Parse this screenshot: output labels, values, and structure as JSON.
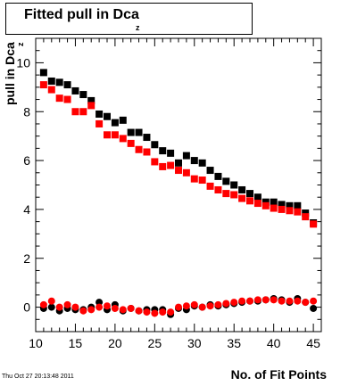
{
  "title": "Fitted pull in Dca",
  "title_subscript": "z",
  "ylabel": "pull in Dca",
  "ylabel_subscript": "z",
  "xlabel": "No. of Fit Points",
  "timestamp": "Thu Oct 27 20:13:48 2011",
  "colors": {
    "black_series": "#000000",
    "red_series": "#ff0000",
    "axis": "#000000"
  },
  "chart_data": {
    "type": "scatter",
    "title": "Fitted pull in Dca",
    "xlabel": "No. of Fit Points",
    "ylabel": "pull in Dca",
    "xlim": [
      10,
      46
    ],
    "ylim": [
      -1,
      11
    ],
    "x_ticks": [
      10,
      15,
      20,
      25,
      30,
      35,
      40,
      45
    ],
    "y_ticks": [
      0,
      2,
      4,
      6,
      8,
      10
    ],
    "grid": false,
    "legend": "none",
    "x": [
      11,
      12,
      13,
      14,
      15,
      16,
      17,
      18,
      19,
      20,
      21,
      22,
      23,
      24,
      25,
      26,
      27,
      28,
      29,
      30,
      31,
      32,
      33,
      34,
      35,
      36,
      37,
      38,
      39,
      40,
      41,
      42,
      43,
      44,
      45
    ],
    "series": [
      {
        "marker": "square",
        "color": "#000000",
        "values": [
          9.6,
          9.25,
          9.2,
          9.1,
          8.85,
          8.7,
          8.45,
          7.9,
          7.8,
          7.55,
          7.65,
          7.15,
          7.15,
          6.95,
          6.65,
          6.4,
          6.3,
          5.9,
          6.2,
          6.0,
          5.9,
          5.6,
          5.35,
          5.15,
          5.0,
          4.8,
          4.65,
          4.5,
          4.3,
          4.3,
          4.2,
          4.15,
          4.15,
          3.85,
          3.45
        ]
      },
      {
        "marker": "square",
        "color": "#ff0000",
        "values": [
          9.1,
          8.9,
          8.55,
          8.5,
          8.0,
          8.0,
          8.25,
          7.5,
          7.05,
          7.05,
          6.9,
          6.7,
          6.45,
          6.35,
          5.95,
          5.75,
          5.8,
          5.6,
          5.5,
          5.25,
          5.2,
          4.95,
          4.8,
          4.65,
          4.6,
          4.45,
          4.35,
          4.25,
          4.15,
          4.05,
          4.0,
          3.95,
          3.9,
          3.7,
          3.4
        ]
      },
      {
        "marker": "circle",
        "color": "#000000",
        "values": [
          -0.05,
          0.0,
          -0.15,
          -0.05,
          -0.1,
          -0.1,
          0.0,
          0.2,
          -0.1,
          0.1,
          -0.15,
          -0.05,
          -0.15,
          -0.1,
          -0.1,
          -0.1,
          -0.3,
          -0.05,
          -0.1,
          0.05,
          0.0,
          0.1,
          0.05,
          0.1,
          0.15,
          0.2,
          0.25,
          0.25,
          0.3,
          0.35,
          0.3,
          0.2,
          0.35,
          0.2,
          -0.05
        ]
      },
      {
        "marker": "circle",
        "color": "#ff0000",
        "values": [
          0.1,
          0.25,
          0.0,
          0.1,
          0.0,
          -0.15,
          -0.1,
          0.0,
          0.05,
          -0.05,
          -0.1,
          -0.05,
          -0.15,
          -0.2,
          -0.25,
          -0.2,
          -0.2,
          0.0,
          0.05,
          0.1,
          0.0,
          0.05,
          0.1,
          0.15,
          0.2,
          0.25,
          0.25,
          0.3,
          0.3,
          0.3,
          0.25,
          0.25,
          0.25,
          0.2,
          0.25
        ]
      }
    ]
  }
}
